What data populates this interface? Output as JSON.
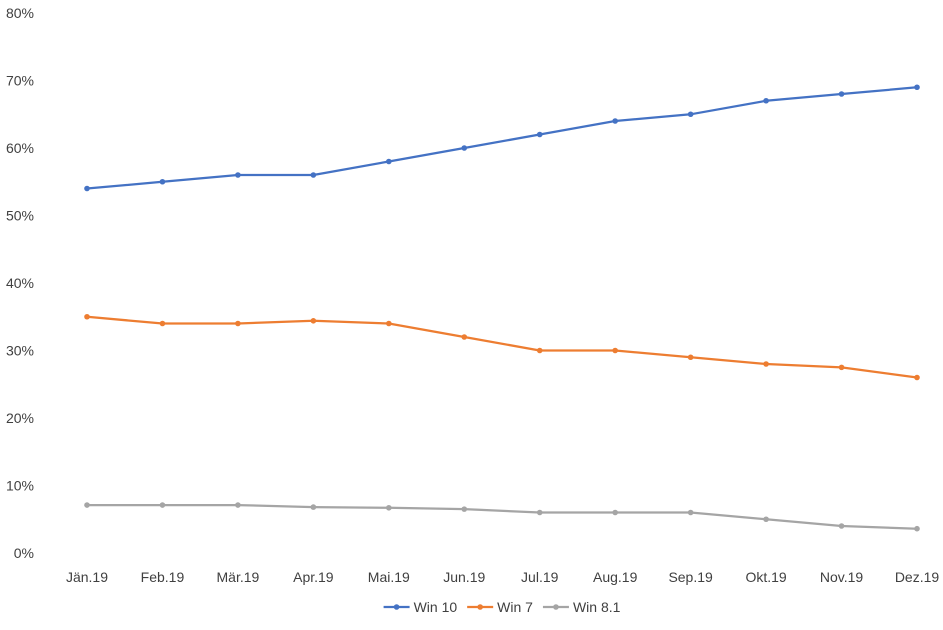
{
  "chart_data": {
    "type": "line",
    "categories": [
      "Jän.19",
      "Feb.19",
      "Mär.19",
      "Apr.19",
      "Mai.19",
      "Jun.19",
      "Jul.19",
      "Aug.19",
      "Sep.19",
      "Okt.19",
      "Nov.19",
      "Dez.19"
    ],
    "series": [
      {
        "name": "Win 10",
        "color": "#4472C4",
        "values": [
          54,
          55,
          56,
          56,
          58,
          60,
          62,
          64,
          65,
          67,
          68,
          69
        ]
      },
      {
        "name": "Win 7",
        "color": "#ED7D31",
        "values": [
          35,
          34,
          34,
          34.4,
          34,
          32,
          30,
          30,
          29,
          28,
          27.5,
          26
        ]
      },
      {
        "name": "Win 8.1",
        "color": "#A5A5A5",
        "values": [
          7.1,
          7.1,
          7.1,
          6.8,
          6.7,
          6.5,
          6,
          6,
          6,
          5,
          4,
          3.6
        ]
      }
    ],
    "ylim": [
      0,
      80
    ],
    "yticks": [
      0,
      10,
      20,
      30,
      40,
      50,
      60,
      70,
      80
    ],
    "ytick_labels": [
      "0%",
      "10%",
      "20%",
      "30%",
      "40%",
      "50%",
      "60%",
      "70%",
      "80%"
    ],
    "grid": false,
    "legend": "bottom"
  }
}
